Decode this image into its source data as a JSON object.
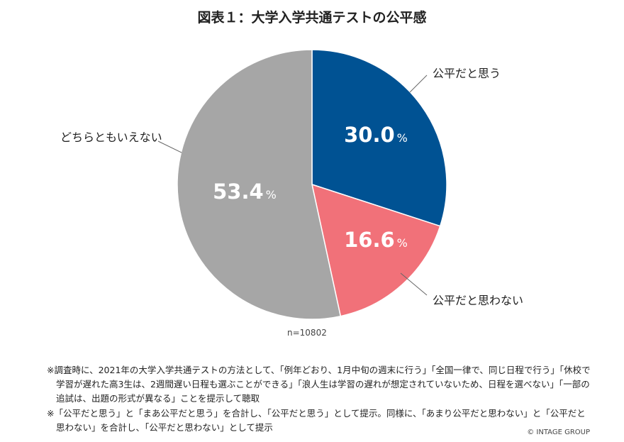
{
  "chart_data": {
    "type": "pie",
    "title": "図表１：大学入学共通テストの公平感",
    "slices": [
      {
        "label": "公平だと思う",
        "value": 30.0,
        "display": "30.0",
        "color": "#005293"
      },
      {
        "label": "公平だと思わない",
        "value": 16.6,
        "display": "16.6",
        "color": "#f17179"
      },
      {
        "label": "どちらともいえない",
        "value": 53.4,
        "display": "53.4",
        "color": "#a6a6a6"
      }
    ],
    "unit": "%",
    "start": "top",
    "direction": "clockwise",
    "sample_size": "n=10802"
  },
  "notes": [
    "※調査時に、2021年の大学入学共通テストの方法として、「例年どおり、1月中旬の週末に行う」「全国一律で、同じ日程で行う」「休校で学習が遅れた高3生は、2週間遅い日程も選ぶことができる」「浪人生は学習の遅れが想定されていないため、日程を選べない」「一部の追試は、出題の形式が異なる」ことを提示して聴取",
    "※「公平だと思う」と「まあ公平だと思う」を合計し、「公平だと思う」として提示。同様に、「あまり公平だと思わない」と「公平だと思わない」を合計し、「公平だと思わない」として提示"
  ],
  "copyright": "© INTAGE GROUP"
}
